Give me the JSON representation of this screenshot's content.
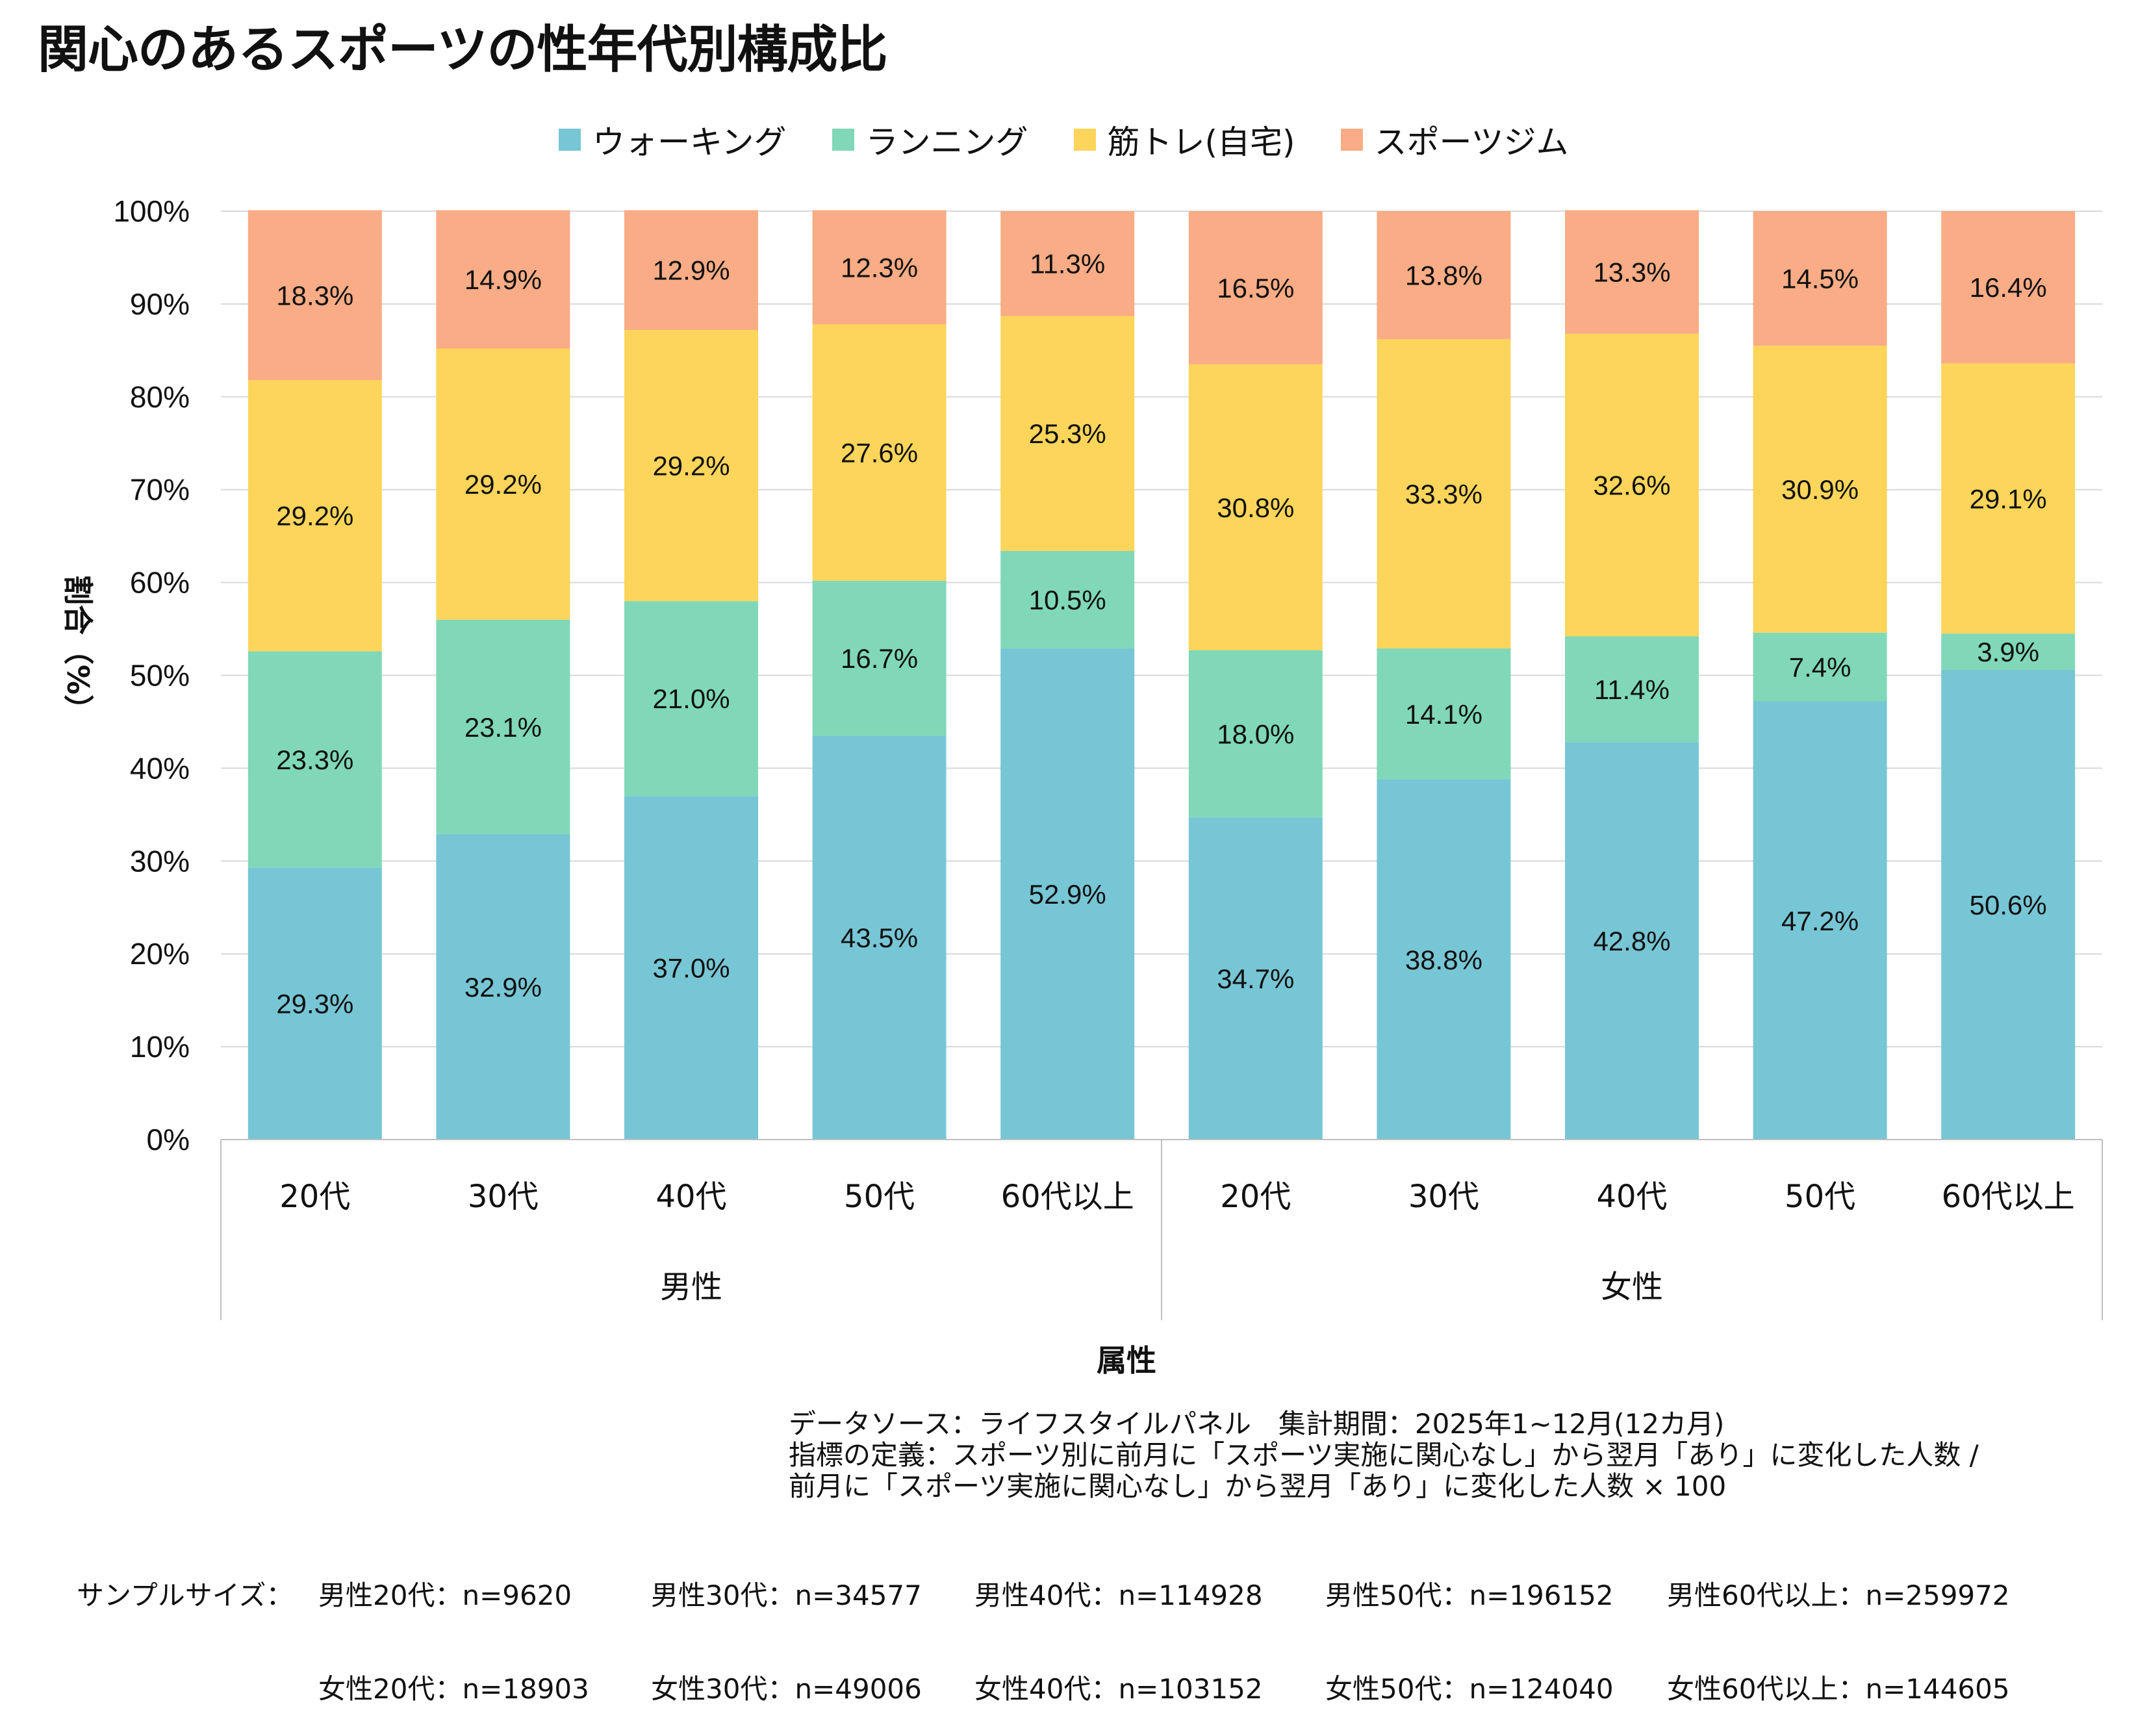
{
  "title": "関心のあるスポーツの性年代別構成比",
  "colors": {
    "walking": "#77C6D5",
    "running": "#80D8B8",
    "muscle": "#FDD55A",
    "gym": "#F9AC85",
    "grid": "#D9D9D9",
    "axis": "#BFBFBF"
  },
  "chart_data": {
    "type": "bar",
    "stacked": true,
    "percent": true,
    "title": "関心のあるスポーツの性年代別構成比",
    "ylabel": "割合（%）",
    "xlabel": "属性",
    "ylim": [
      0,
      100
    ],
    "yticks": [
      "0%",
      "10%",
      "20%",
      "30%",
      "40%",
      "50%",
      "60%",
      "70%",
      "80%",
      "90%",
      "100%"
    ],
    "legend_position": "top",
    "groups": [
      {
        "name": "男性",
        "categories": [
          "20代",
          "30代",
          "40代",
          "50代",
          "60代以上"
        ]
      },
      {
        "name": "女性",
        "categories": [
          "20代",
          "30代",
          "40代",
          "50代",
          "60代以上"
        ]
      }
    ],
    "series": [
      {
        "name": "ウォーキング",
        "color": "#77C6D5",
        "values": [
          29.3,
          32.9,
          37.0,
          43.5,
          52.9,
          34.7,
          38.8,
          42.8,
          47.2,
          50.6
        ],
        "labels": [
          "29.3%",
          "32.9%",
          "37.0%",
          "43.5%",
          "52.9%",
          "34.7%",
          "38.8%",
          "42.8%",
          "47.2%",
          "50.6%"
        ]
      },
      {
        "name": "ランニング",
        "color": "#80D8B8",
        "values": [
          23.3,
          23.1,
          21.0,
          16.7,
          10.5,
          18.0,
          14.1,
          11.4,
          7.4,
          3.9
        ],
        "labels": [
          "23.3%",
          "23.1%",
          "21.0%",
          "16.7%",
          "10.5%",
          "18.0%",
          "14.1%",
          "11.4%",
          "7.4%",
          "3.9%"
        ]
      },
      {
        "name": "筋トレ(自宅)",
        "color": "#FDD55A",
        "values": [
          29.2,
          29.2,
          29.2,
          27.6,
          25.3,
          30.8,
          33.3,
          32.6,
          30.9,
          29.1
        ],
        "labels": [
          "29.2%",
          "29.2%",
          "29.2%",
          "27.6%",
          "25.3%",
          "30.8%",
          "33.3%",
          "32.6%",
          "30.9%",
          "29.1%"
        ]
      },
      {
        "name": "スポーツジム",
        "color": "#F9AC85",
        "values": [
          18.3,
          14.9,
          12.9,
          12.3,
          11.3,
          16.5,
          13.8,
          13.3,
          14.5,
          16.4
        ],
        "labels": [
          "18.3%",
          "14.9%",
          "12.9%",
          "12.3%",
          "11.3%",
          "16.5%",
          "13.8%",
          "13.3%",
          "14.5%",
          "16.4%"
        ]
      }
    ]
  },
  "notes": {
    "line1": "データソース：ライフスタイルパネル　集計期間：2025年1~12月(12カ月)",
    "line2": "指標の定義：スポーツ別に前月に「スポーツ実施に関心なし」から翌月「あり」に変化した人数 /",
    "line3": "前月に「スポーツ実施に関心なし」から翌月「あり」に変化した人数 × 100"
  },
  "samples": {
    "label": "サンプルサイズ：",
    "male": [
      "男性20代：n=9620",
      "男性30代：n=34577",
      "男性40代：n=114928",
      "男性50代：n=196152",
      "男性60代以上：n=259972"
    ],
    "female": [
      "女性20代：n=18903",
      "女性30代：n=49006",
      "女性40代：n=103152",
      "女性50代：n=124040",
      "女性60代以上：n=144605"
    ]
  }
}
